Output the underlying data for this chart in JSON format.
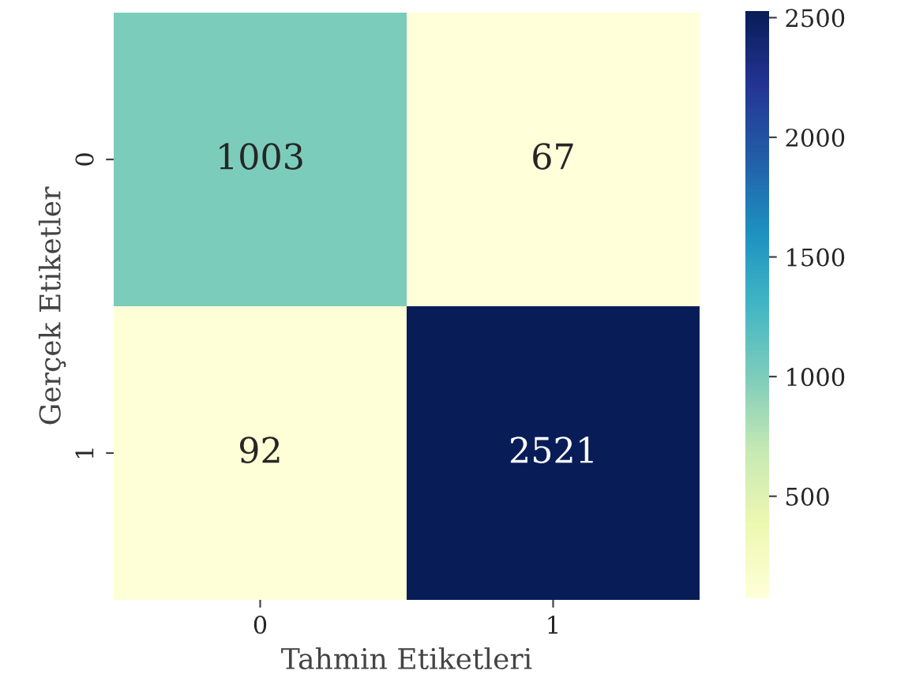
{
  "chart_data": {
    "type": "heatmap",
    "xlabel": "Tahmin Etiketleri",
    "ylabel": "Gerçek Etiketler",
    "categories": [
      "0",
      "1"
    ],
    "y_categories": [
      "0",
      "1"
    ],
    "cells": [
      [
        1003,
        67
      ],
      [
        92,
        2521
      ]
    ],
    "clim": [
      67,
      2521
    ],
    "cticks": [
      500,
      1000,
      1500,
      2000,
      2500
    ],
    "data_labels": true
  }
}
